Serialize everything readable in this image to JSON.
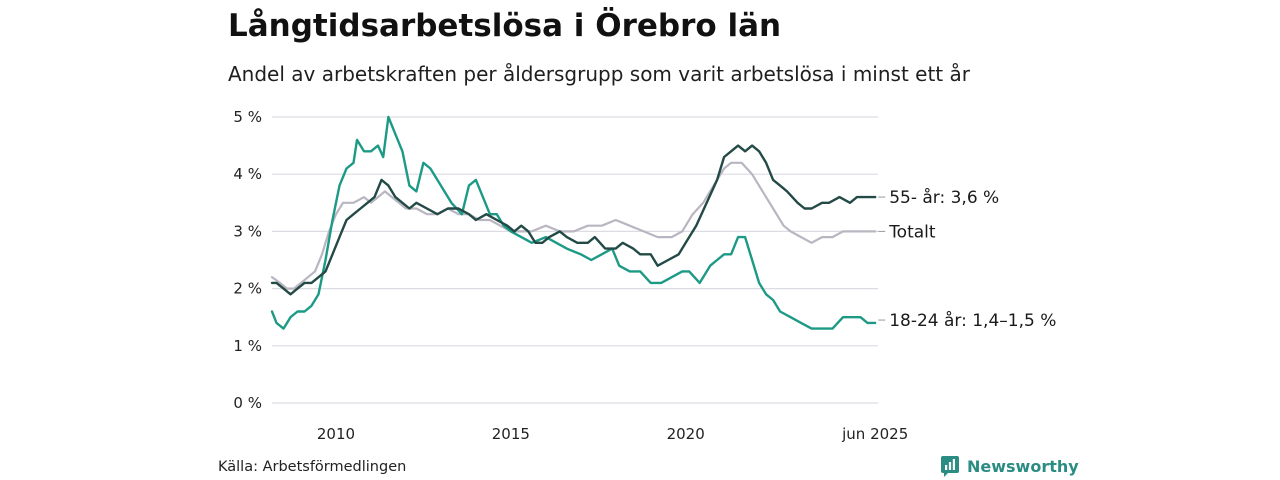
{
  "header": {
    "title": "Långtidsarbetslösa i Örebro län",
    "subtitle": "Andel av arbetskraften per åldersgrupp som varit arbetslösa i minst ett år"
  },
  "footer": {
    "source": "Källa: Arbetsförmedlingen",
    "brand": "Newsworthy",
    "brand_icon": "bar-chart-logo-icon",
    "brand_color": "#2a8c82"
  },
  "chart_data": {
    "type": "line",
    "title": "Långtidsarbetslösa i Örebro län",
    "subtitle": "Andel av arbetskraften per åldersgrupp som varit arbetslösa i minst ett år",
    "xlabel": "",
    "ylabel": "",
    "xlim": [
      2008.17,
      2025.5
    ],
    "ylim": [
      0,
      5
    ],
    "x_ticks": [
      {
        "value": 2010,
        "label": "2010"
      },
      {
        "value": 2015,
        "label": "2015"
      },
      {
        "value": 2020,
        "label": "2020"
      },
      {
        "value": 2025.42,
        "label": "jun 2025"
      }
    ],
    "y_ticks": [
      {
        "value": 0,
        "label": "0 %"
      },
      {
        "value": 1,
        "label": "1 %"
      },
      {
        "value": 2,
        "label": "2 %"
      },
      {
        "value": 3,
        "label": "3 %"
      },
      {
        "value": 4,
        "label": "4 %"
      },
      {
        "value": 5,
        "label": "5 %"
      }
    ],
    "grid": true,
    "legend": "direct labels at line ends (right)",
    "series": [
      {
        "label": "Totalt",
        "color": "#b9b6c2",
        "points": [
          [
            2008.17,
            2.2
          ],
          [
            2008.4,
            2.1
          ],
          [
            2008.6,
            2.0
          ],
          [
            2008.8,
            2.0
          ],
          [
            2009.0,
            2.1
          ],
          [
            2009.2,
            2.2
          ],
          [
            2009.4,
            2.3
          ],
          [
            2009.6,
            2.6
          ],
          [
            2009.8,
            3.0
          ],
          [
            2010.0,
            3.3
          ],
          [
            2010.2,
            3.5
          ],
          [
            2010.5,
            3.5
          ],
          [
            2010.8,
            3.6
          ],
          [
            2011.0,
            3.5
          ],
          [
            2011.2,
            3.6
          ],
          [
            2011.4,
            3.7
          ],
          [
            2011.6,
            3.6
          ],
          [
            2011.8,
            3.5
          ],
          [
            2012.0,
            3.4
          ],
          [
            2012.3,
            3.4
          ],
          [
            2012.6,
            3.3
          ],
          [
            2012.9,
            3.3
          ],
          [
            2013.2,
            3.4
          ],
          [
            2013.5,
            3.3
          ],
          [
            2013.8,
            3.3
          ],
          [
            2014.1,
            3.2
          ],
          [
            2014.4,
            3.2
          ],
          [
            2014.7,
            3.1
          ],
          [
            2015.0,
            3.0
          ],
          [
            2015.3,
            3.0
          ],
          [
            2015.6,
            3.0
          ],
          [
            2016.0,
            3.1
          ],
          [
            2016.4,
            3.0
          ],
          [
            2016.8,
            3.0
          ],
          [
            2017.2,
            3.1
          ],
          [
            2017.6,
            3.1
          ],
          [
            2018.0,
            3.2
          ],
          [
            2018.4,
            3.1
          ],
          [
            2018.8,
            3.0
          ],
          [
            2019.2,
            2.9
          ],
          [
            2019.6,
            2.9
          ],
          [
            2019.9,
            3.0
          ],
          [
            2020.2,
            3.3
          ],
          [
            2020.5,
            3.5
          ],
          [
            2020.8,
            3.8
          ],
          [
            2021.1,
            4.1
          ],
          [
            2021.3,
            4.2
          ],
          [
            2021.6,
            4.2
          ],
          [
            2021.9,
            4.0
          ],
          [
            2022.2,
            3.7
          ],
          [
            2022.5,
            3.4
          ],
          [
            2022.8,
            3.1
          ],
          [
            2023.0,
            3.0
          ],
          [
            2023.3,
            2.9
          ],
          [
            2023.6,
            2.8
          ],
          [
            2023.9,
            2.9
          ],
          [
            2024.2,
            2.9
          ],
          [
            2024.5,
            3.0
          ],
          [
            2024.8,
            3.0
          ],
          [
            2025.1,
            3.0
          ],
          [
            2025.42,
            3.0
          ]
        ]
      },
      {
        "label": "18-24 år: 1,4–1,5 %",
        "color": "#1d9a86",
        "points": [
          [
            2008.17,
            1.6
          ],
          [
            2008.3,
            1.4
          ],
          [
            2008.5,
            1.3
          ],
          [
            2008.7,
            1.5
          ],
          [
            2008.9,
            1.6
          ],
          [
            2009.1,
            1.6
          ],
          [
            2009.3,
            1.7
          ],
          [
            2009.5,
            1.9
          ],
          [
            2009.7,
            2.5
          ],
          [
            2009.9,
            3.2
          ],
          [
            2010.1,
            3.8
          ],
          [
            2010.3,
            4.1
          ],
          [
            2010.5,
            4.2
          ],
          [
            2010.6,
            4.6
          ],
          [
            2010.8,
            4.4
          ],
          [
            2011.0,
            4.4
          ],
          [
            2011.2,
            4.5
          ],
          [
            2011.35,
            4.3
          ],
          [
            2011.5,
            5.0
          ],
          [
            2011.7,
            4.7
          ],
          [
            2011.9,
            4.4
          ],
          [
            2012.1,
            3.8
          ],
          [
            2012.3,
            3.7
          ],
          [
            2012.5,
            4.2
          ],
          [
            2012.7,
            4.1
          ],
          [
            2013.0,
            3.8
          ],
          [
            2013.3,
            3.5
          ],
          [
            2013.6,
            3.3
          ],
          [
            2013.8,
            3.8
          ],
          [
            2014.0,
            3.9
          ],
          [
            2014.2,
            3.6
          ],
          [
            2014.4,
            3.3
          ],
          [
            2014.6,
            3.3
          ],
          [
            2014.8,
            3.1
          ],
          [
            2015.0,
            3.0
          ],
          [
            2015.3,
            2.9
          ],
          [
            2015.6,
            2.8
          ],
          [
            2016.0,
            2.9
          ],
          [
            2016.3,
            2.8
          ],
          [
            2016.6,
            2.7
          ],
          [
            2017.0,
            2.6
          ],
          [
            2017.3,
            2.5
          ],
          [
            2017.6,
            2.6
          ],
          [
            2017.9,
            2.7
          ],
          [
            2018.1,
            2.4
          ],
          [
            2018.4,
            2.3
          ],
          [
            2018.7,
            2.3
          ],
          [
            2019.0,
            2.1
          ],
          [
            2019.3,
            2.1
          ],
          [
            2019.6,
            2.2
          ],
          [
            2019.9,
            2.3
          ],
          [
            2020.1,
            2.3
          ],
          [
            2020.4,
            2.1
          ],
          [
            2020.7,
            2.4
          ],
          [
            2020.9,
            2.5
          ],
          [
            2021.1,
            2.6
          ],
          [
            2021.3,
            2.6
          ],
          [
            2021.5,
            2.9
          ],
          [
            2021.7,
            2.9
          ],
          [
            2021.9,
            2.5
          ],
          [
            2022.1,
            2.1
          ],
          [
            2022.3,
            1.9
          ],
          [
            2022.5,
            1.8
          ],
          [
            2022.7,
            1.6
          ],
          [
            2023.0,
            1.5
          ],
          [
            2023.3,
            1.4
          ],
          [
            2023.6,
            1.3
          ],
          [
            2023.9,
            1.3
          ],
          [
            2024.2,
            1.3
          ],
          [
            2024.5,
            1.5
          ],
          [
            2024.8,
            1.5
          ],
          [
            2025.0,
            1.5
          ],
          [
            2025.2,
            1.4
          ],
          [
            2025.42,
            1.4
          ]
        ]
      },
      {
        "label": "55- år: 3,6 %",
        "color": "#234a46",
        "points": [
          [
            2008.17,
            2.1
          ],
          [
            2008.3,
            2.1
          ],
          [
            2008.5,
            2.0
          ],
          [
            2008.7,
            1.9
          ],
          [
            2008.9,
            2.0
          ],
          [
            2009.1,
            2.1
          ],
          [
            2009.3,
            2.1
          ],
          [
            2009.5,
            2.2
          ],
          [
            2009.7,
            2.3
          ],
          [
            2009.9,
            2.6
          ],
          [
            2010.1,
            2.9
          ],
          [
            2010.3,
            3.2
          ],
          [
            2010.5,
            3.3
          ],
          [
            2010.7,
            3.4
          ],
          [
            2010.9,
            3.5
          ],
          [
            2011.1,
            3.6
          ],
          [
            2011.3,
            3.9
          ],
          [
            2011.5,
            3.8
          ],
          [
            2011.7,
            3.6
          ],
          [
            2011.9,
            3.5
          ],
          [
            2012.1,
            3.4
          ],
          [
            2012.3,
            3.5
          ],
          [
            2012.6,
            3.4
          ],
          [
            2012.9,
            3.3
          ],
          [
            2013.2,
            3.4
          ],
          [
            2013.5,
            3.4
          ],
          [
            2013.8,
            3.3
          ],
          [
            2014.0,
            3.2
          ],
          [
            2014.3,
            3.3
          ],
          [
            2014.6,
            3.2
          ],
          [
            2014.9,
            3.1
          ],
          [
            2015.1,
            3.0
          ],
          [
            2015.3,
            3.1
          ],
          [
            2015.5,
            3.0
          ],
          [
            2015.7,
            2.8
          ],
          [
            2015.9,
            2.8
          ],
          [
            2016.1,
            2.9
          ],
          [
            2016.4,
            3.0
          ],
          [
            2016.6,
            2.9
          ],
          [
            2016.9,
            2.8
          ],
          [
            2017.2,
            2.8
          ],
          [
            2017.4,
            2.9
          ],
          [
            2017.7,
            2.7
          ],
          [
            2018.0,
            2.7
          ],
          [
            2018.2,
            2.8
          ],
          [
            2018.5,
            2.7
          ],
          [
            2018.7,
            2.6
          ],
          [
            2019.0,
            2.6
          ],
          [
            2019.2,
            2.4
          ],
          [
            2019.5,
            2.5
          ],
          [
            2019.8,
            2.6
          ],
          [
            2020.0,
            2.8
          ],
          [
            2020.3,
            3.1
          ],
          [
            2020.6,
            3.5
          ],
          [
            2020.9,
            3.9
          ],
          [
            2021.1,
            4.3
          ],
          [
            2021.3,
            4.4
          ],
          [
            2021.5,
            4.5
          ],
          [
            2021.7,
            4.4
          ],
          [
            2021.9,
            4.5
          ],
          [
            2022.1,
            4.4
          ],
          [
            2022.3,
            4.2
          ],
          [
            2022.5,
            3.9
          ],
          [
            2022.7,
            3.8
          ],
          [
            2022.9,
            3.7
          ],
          [
            2023.2,
            3.5
          ],
          [
            2023.4,
            3.4
          ],
          [
            2023.6,
            3.4
          ],
          [
            2023.9,
            3.5
          ],
          [
            2024.1,
            3.5
          ],
          [
            2024.4,
            3.6
          ],
          [
            2024.7,
            3.5
          ],
          [
            2024.9,
            3.6
          ],
          [
            2025.1,
            3.6
          ],
          [
            2025.3,
            3.6
          ],
          [
            2025.42,
            3.6
          ]
        ]
      }
    ]
  }
}
